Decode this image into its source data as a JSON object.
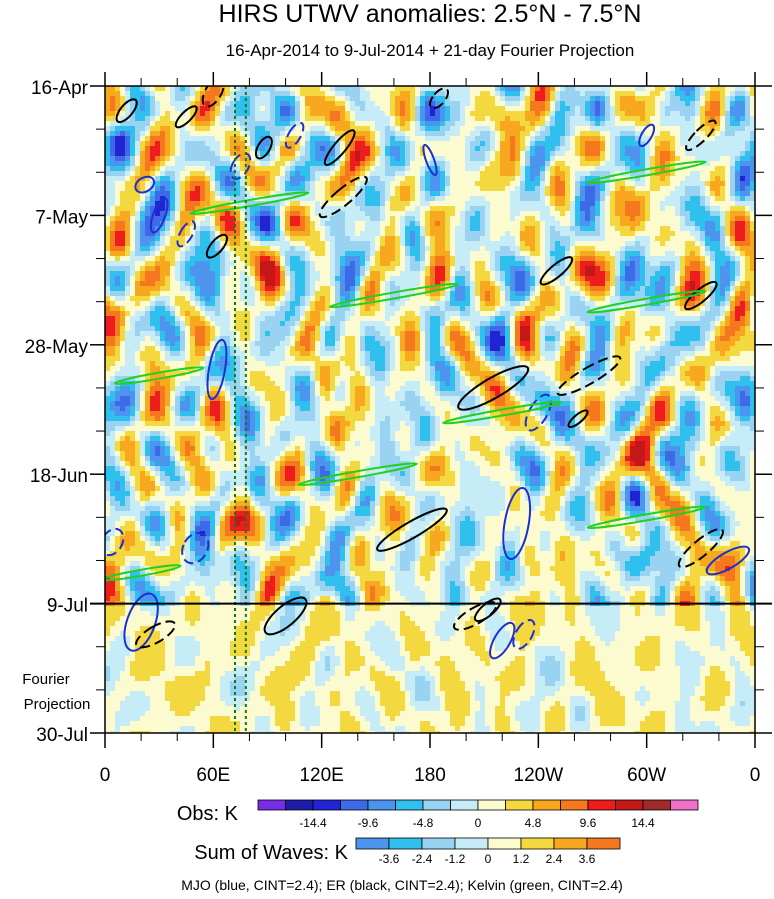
{
  "chart_data": {
    "type": "heatmap",
    "title": "HIRS UTWV anomalies: 2.5°N - 7.5°N",
    "subtitle": "16-Apr-2014 to 9-Jul-2014 + 21-day Fourier Projection",
    "x_tick_labels": [
      "0",
      "60E",
      "120E",
      "180",
      "120W",
      "60W",
      "0"
    ],
    "x_tick_lons": [
      0,
      60,
      120,
      180,
      240,
      300,
      360
    ],
    "y_tick_labels": [
      "16-Apr",
      "7-May",
      "28-May",
      "18-Jun",
      "9-Jul",
      "30-Jul"
    ],
    "y_tick_days": [
      0,
      21,
      42,
      63,
      84,
      105
    ],
    "projection_label_line1": "Fourier",
    "projection_label_line2": "Projection",
    "projection_start_day": 84,
    "obs_start": "16-Apr-2014",
    "obs_end": "9-Jul-2014",
    "vertical_dotted_lons": [
      72,
      78
    ],
    "obs_colorbar": {
      "label": "Obs: K",
      "colors": [
        "#7a2be6",
        "#1c1ca8",
        "#2323d6",
        "#3d6ae6",
        "#4d94ee",
        "#30c0ee",
        "#9ad2f2",
        "#c6ecf8",
        "#fcfbd0",
        "#f4d840",
        "#f7a81e",
        "#f6781e",
        "#ee1c1c",
        "#c41818",
        "#a02a2a",
        "#f070c8"
      ],
      "tick_labels": [
        "-14.4",
        "-9.6",
        "-4.8",
        "0",
        "4.8",
        "9.6",
        "14.4"
      ],
      "tick_edges": [
        2,
        4,
        6,
        8,
        10,
        12,
        14
      ]
    },
    "waves_colorbar": {
      "label": "Sum of Waves: K",
      "colors": [
        "#4d94ee",
        "#30c0ee",
        "#9ad2f2",
        "#c6ecf8",
        "#fcfbd0",
        "#f4d840",
        "#f7a81e",
        "#f6781e"
      ],
      "tick_labels": [
        "-3.6",
        "-2.4",
        "-1.2",
        "0",
        "1.2",
        "2.4",
        "3.6"
      ],
      "tick_edges": [
        1,
        2,
        3,
        4,
        5,
        6,
        7
      ]
    },
    "footnote": "MJO (blue, CINT=2.4); ER (black, CINT=2.4); Kelvin (green, CINT=2.4)",
    "series": [
      {
        "name": "MJO",
        "color": "#1c2fd0",
        "contour_interval": 2.4
      },
      {
        "name": "ER",
        "color": "#000000",
        "contour_interval": 2.4
      },
      {
        "name": "Kelvin",
        "color": "#22d022",
        "contour_interval": 2.4
      }
    ],
    "contours": {
      "mjo": [
        {
          "lon": 105,
          "day": 8,
          "a": 6,
          "b": 14,
          "rot": -150,
          "dash": true
        },
        {
          "lon": 75,
          "day": 13,
          "a": 8,
          "b": 14,
          "rot": -150,
          "dash": true
        },
        {
          "lon": 22,
          "day": 16,
          "a": 7,
          "b": 10,
          "rot": -120,
          "dash": false
        },
        {
          "lon": 180,
          "day": 12,
          "a": 4,
          "b": 16,
          "rot": 160,
          "dash": false
        },
        {
          "lon": 300,
          "day": 8,
          "a": 5,
          "b": 12,
          "rot": -150,
          "dash": false
        },
        {
          "lon": 30,
          "day": 21,
          "a": 6,
          "b": 18,
          "rot": -160,
          "dash": false
        },
        {
          "lon": 45,
          "day": 24,
          "a": 6,
          "b": 14,
          "rot": -150,
          "dash": true
        },
        {
          "lon": 62,
          "day": 46,
          "a": 8,
          "b": 30,
          "rot": -170,
          "dash": false
        },
        {
          "lon": 4,
          "day": 74,
          "a": 10,
          "b": 14,
          "rot": -150,
          "dash": true
        },
        {
          "lon": 50,
          "day": 75,
          "a": 12,
          "b": 16,
          "rot": -150,
          "dash": true
        },
        {
          "lon": 228,
          "day": 71,
          "a": 12,
          "b": 36,
          "rot": -170,
          "dash": false
        },
        {
          "lon": 240,
          "day": 53,
          "a": 9,
          "b": 20,
          "rot": -150,
          "dash": true
        },
        {
          "lon": 345,
          "day": 77,
          "a": 8,
          "b": 24,
          "rot": -120,
          "dash": false
        },
        {
          "lon": 20,
          "day": 87,
          "a": 14,
          "b": 30,
          "rot": -160,
          "dash": false
        },
        {
          "lon": 220,
          "day": 90,
          "a": 8,
          "b": 20,
          "rot": -150,
          "dash": false
        },
        {
          "lon": 232,
          "day": 89,
          "a": 8,
          "b": 16,
          "rot": -150,
          "dash": true
        }
      ],
      "er": [
        {
          "lon": 12,
          "day": 4,
          "a": 6,
          "b": 14,
          "rot": -140,
          "dash": false
        },
        {
          "lon": 60,
          "day": 1,
          "a": 8,
          "b": 16,
          "rot": -150,
          "dash": true
        },
        {
          "lon": 45,
          "day": 5,
          "a": 5,
          "b": 14,
          "rot": -135,
          "dash": false
        },
        {
          "lon": 88,
          "day": 10,
          "a": 6,
          "b": 12,
          "rot": -150,
          "dash": false
        },
        {
          "lon": 132,
          "day": 18,
          "a": 8,
          "b": 30,
          "rot": -130,
          "dash": true
        },
        {
          "lon": 130,
          "day": 10,
          "a": 6,
          "b": 22,
          "rot": -140,
          "dash": false
        },
        {
          "lon": 185,
          "day": 2,
          "a": 6,
          "b": 12,
          "rot": -140,
          "dash": true
        },
        {
          "lon": 330,
          "day": 8,
          "a": 6,
          "b": 20,
          "rot": -135,
          "dash": true
        },
        {
          "lon": 62,
          "day": 26,
          "a": 6,
          "b": 14,
          "rot": -140,
          "dash": false
        },
        {
          "lon": 250,
          "day": 30,
          "a": 6,
          "b": 20,
          "rot": -130,
          "dash": false
        },
        {
          "lon": 330,
          "day": 34,
          "a": 6,
          "b": 20,
          "rot": -130,
          "dash": false
        },
        {
          "lon": 215,
          "day": 49,
          "a": 10,
          "b": 40,
          "rot": -120,
          "dash": false
        },
        {
          "lon": 268,
          "day": 47,
          "a": 8,
          "b": 36,
          "rot": -120,
          "dash": true
        },
        {
          "lon": 262,
          "day": 54,
          "a": 4,
          "b": 12,
          "rot": -130,
          "dash": false
        },
        {
          "lon": 170,
          "day": 72,
          "a": 8,
          "b": 40,
          "rot": -120,
          "dash": false
        },
        {
          "lon": 330,
          "day": 75,
          "a": 8,
          "b": 28,
          "rot": -130,
          "dash": true
        },
        {
          "lon": 28,
          "day": 89,
          "a": 8,
          "b": 22,
          "rot": -120,
          "dash": true
        },
        {
          "lon": 100,
          "day": 86,
          "a": 10,
          "b": 26,
          "rot": -130,
          "dash": false
        },
        {
          "lon": 212,
          "day": 85,
          "a": 6,
          "b": 16,
          "rot": -130,
          "dash": false
        },
        {
          "lon": 205,
          "day": 86,
          "a": 8,
          "b": 24,
          "rot": -120,
          "dash": true
        }
      ],
      "kelvin": [
        {
          "lon": 80,
          "day": 19,
          "a": 3,
          "b": 60,
          "rot": -100,
          "dash": false
        },
        {
          "lon": 300,
          "day": 14,
          "a": 3,
          "b": 60,
          "rot": -100,
          "dash": false
        },
        {
          "lon": 160,
          "day": 34,
          "a": 3,
          "b": 65,
          "rot": -100,
          "dash": false
        },
        {
          "lon": 300,
          "day": 35,
          "a": 3,
          "b": 60,
          "rot": -100,
          "dash": false
        },
        {
          "lon": 220,
          "day": 53,
          "a": 3,
          "b": 60,
          "rot": -100,
          "dash": false
        },
        {
          "lon": 30,
          "day": 47,
          "a": 3,
          "b": 45,
          "rot": -100,
          "dash": false
        },
        {
          "lon": 140,
          "day": 63,
          "a": 3,
          "b": 60,
          "rot": -100,
          "dash": false
        },
        {
          "lon": 300,
          "day": 70,
          "a": 3,
          "b": 60,
          "rot": -100,
          "dash": false
        },
        {
          "lon": 20,
          "day": 79,
          "a": 3,
          "b": 40,
          "rot": -100,
          "dash": false
        }
      ]
    }
  }
}
